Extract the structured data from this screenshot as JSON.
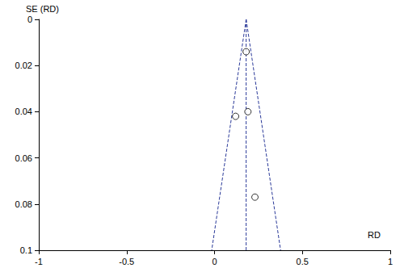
{
  "chart_data": {
    "type": "scatter",
    "x_label": "RD",
    "y_label": "SE (RD)",
    "xlim": [
      -1,
      1
    ],
    "xticks": [
      -1,
      -0.5,
      0,
      0.5,
      1
    ],
    "ylim": [
      0,
      0.1
    ],
    "yticks": [
      0,
      0.02,
      0.04,
      0.06,
      0.08,
      0.1
    ],
    "y_inverted": true,
    "grid": false,
    "marker": "circle",
    "points": {
      "x": [
        0.18,
        0.12,
        0.19,
        0.23
      ],
      "y": [
        0.014,
        0.042,
        0.04,
        0.077
      ]
    },
    "reference_lines": [
      {
        "x": [
          0.18,
          0.18
        ],
        "y": [
          0,
          0.1
        ]
      },
      {
        "x": [
          0.18,
          -0.016
        ],
        "y": [
          0,
          0.1
        ]
      },
      {
        "x": [
          0.18,
          0.376
        ],
        "y": [
          0,
          0.1
        ]
      }
    ],
    "line_style": "dashed",
    "color": "#2b3a99"
  }
}
